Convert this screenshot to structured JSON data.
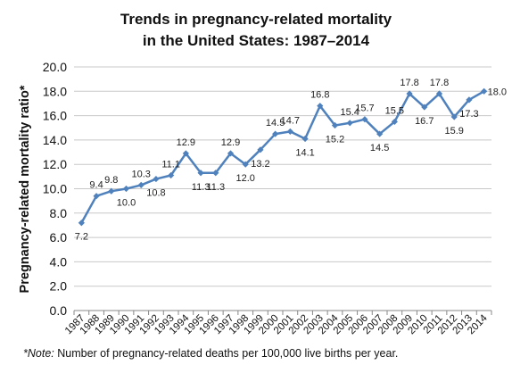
{
  "chart_data": {
    "type": "line",
    "title_lines": [
      "Trends in pregnancy-related mortality",
      "in the United States: 1987–2014"
    ],
    "ylabel": "Pregnancy-related mortality ratio*",
    "xlabel": "",
    "ylim": [
      0,
      20
    ],
    "ytick_step": 2,
    "ytick_labels": [
      "0.0",
      "2.0",
      "4.0",
      "6.0",
      "8.0",
      "10.0",
      "12.0",
      "14.0",
      "16.0",
      "18.0",
      "20.0"
    ],
    "grid": true,
    "line_color": "#4f81bd",
    "grid_color": "#c8c8c8",
    "categories": [
      "1987",
      "1988",
      "1989",
      "1990",
      "1991",
      "1992",
      "1993",
      "1994",
      "1995",
      "1996",
      "1997",
      "1998",
      "1999",
      "2000",
      "2001",
      "2002",
      "2003",
      "2004",
      "2005",
      "2006",
      "2007",
      "2008",
      "2009",
      "2010",
      "2011",
      "2012",
      "2013",
      "2014"
    ],
    "series": [
      {
        "values": [
          7.2,
          9.4,
          9.8,
          10.0,
          10.3,
          10.8,
          11.1,
          12.9,
          11.3,
          11.3,
          12.9,
          12.0,
          13.2,
          14.5,
          14.7,
          14.1,
          16.8,
          15.2,
          15.4,
          15.7,
          14.5,
          15.5,
          17.8,
          16.7,
          17.8,
          15.9,
          17.3,
          18.0
        ],
        "data_labels": [
          "7.2",
          "9.4",
          "9.8",
          "10.0",
          "10.3",
          "10.8",
          "11.1",
          "12.9",
          "11.3",
          "11.3",
          "12.9",
          "12.0",
          "13.2",
          "14.5",
          "14.7",
          "14.1",
          "16.8",
          "15.2",
          "15.4",
          "15.7",
          "14.5",
          "15.5",
          "17.8",
          "16.7",
          "17.8",
          "15.9",
          "17.3",
          "18.0"
        ],
        "label_positions": [
          "below",
          "above",
          "above",
          "below",
          "above",
          "below",
          "above",
          "above",
          "below",
          "below",
          "above",
          "below",
          "below",
          "above",
          "above",
          "below",
          "above",
          "below",
          "above",
          "above",
          "below",
          "above",
          "above",
          "below",
          "above",
          "below",
          "below",
          "right"
        ]
      }
    ]
  },
  "note": {
    "prefix": "*Note:",
    "text": " Number of pregnancy-related deaths per 100,000 live births per year."
  }
}
